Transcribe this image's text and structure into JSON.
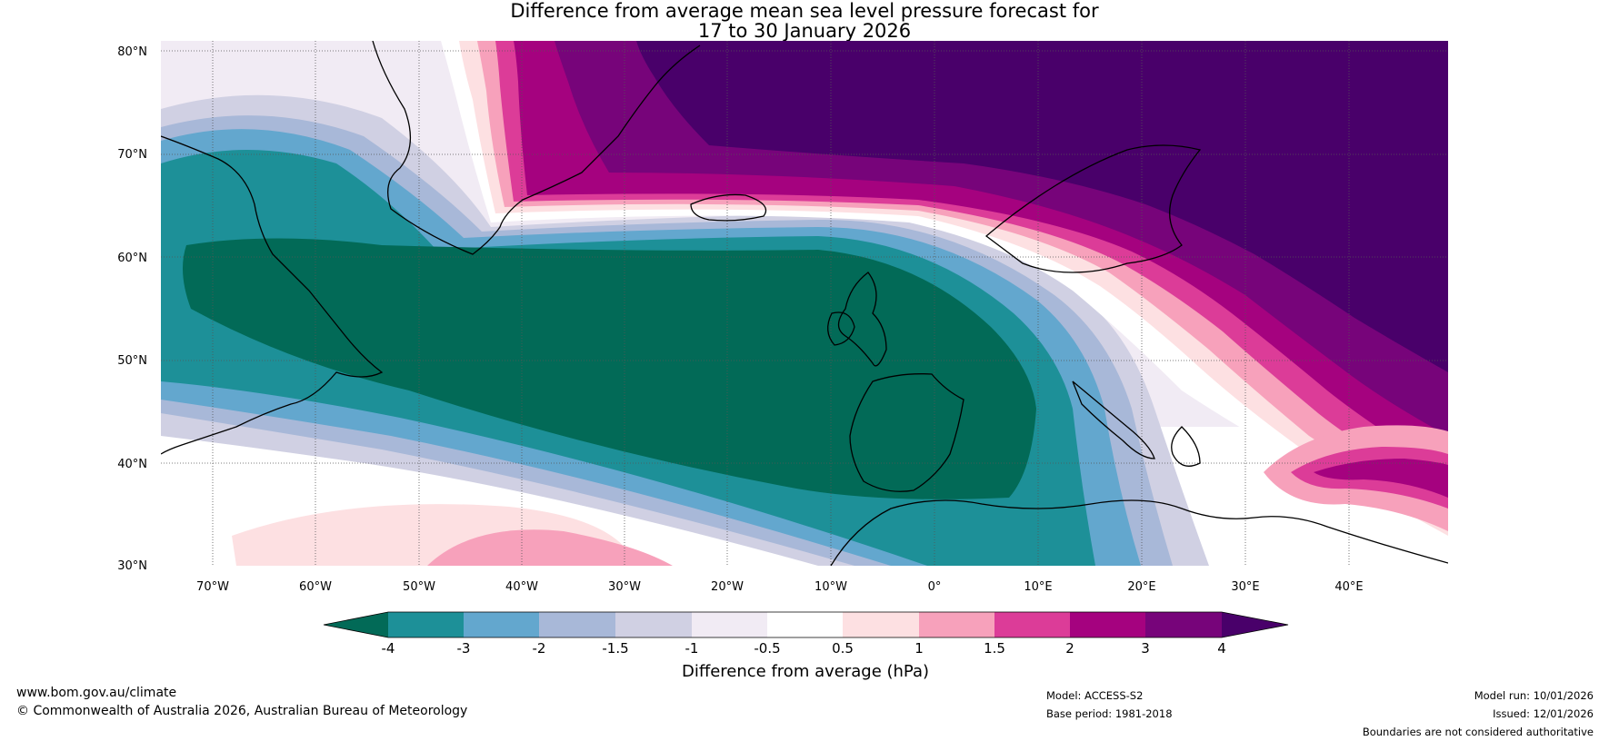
{
  "title": {
    "line1": "Difference from average mean sea level pressure forecast for",
    "line2": "17 to 30 January 2026"
  },
  "map": {
    "lat_labels": [
      "80°N",
      "70°N",
      "60°N",
      "50°N",
      "40°N",
      "30°N"
    ],
    "lon_labels": [
      "70°W",
      "60°W",
      "50°W",
      "40°W",
      "30°W",
      "20°W",
      "10°W",
      "0°",
      "10°E",
      "20°E",
      "30°E",
      "40°E"
    ],
    "features": {
      "high_anomaly": "strong positive anomaly (> 4 hPa) over the Norwegian Sea, Svalbard and Scandinavia",
      "low_anomaly": "strong negative anomaly (< -4 hPa) across the North Atlantic to the British Isles and Iberia"
    }
  },
  "colorbar": {
    "title": "Difference from average (hPa)",
    "tick_labels": [
      "-4",
      "-3",
      "-2",
      "-1.5",
      "-1",
      "-0.5",
      "0.5",
      "1",
      "1.5",
      "2",
      "3",
      "4"
    ],
    "colors": [
      "#026a57",
      "#1d9098",
      "#63a7ce",
      "#a8b8d8",
      "#d0d0e3",
      "#f1ebf4",
      "#ffffff",
      "#fde0e2",
      "#f7a1bb",
      "#dc3c98",
      "#a5027f",
      "#77047a",
      "#49006a"
    ]
  },
  "footer": {
    "website": "www.bom.gov.au/climate",
    "copyright": "© Commonwealth of Australia 2026, Australian Bureau of Meteorology",
    "model": "Model: ACCESS-S2",
    "base_period": "Base period: 1981-2018",
    "model_run": "Model run: 10/01/2026",
    "issued": "Issued: 12/01/2026",
    "disclaimer": "Boundaries are not considered authoritative"
  }
}
